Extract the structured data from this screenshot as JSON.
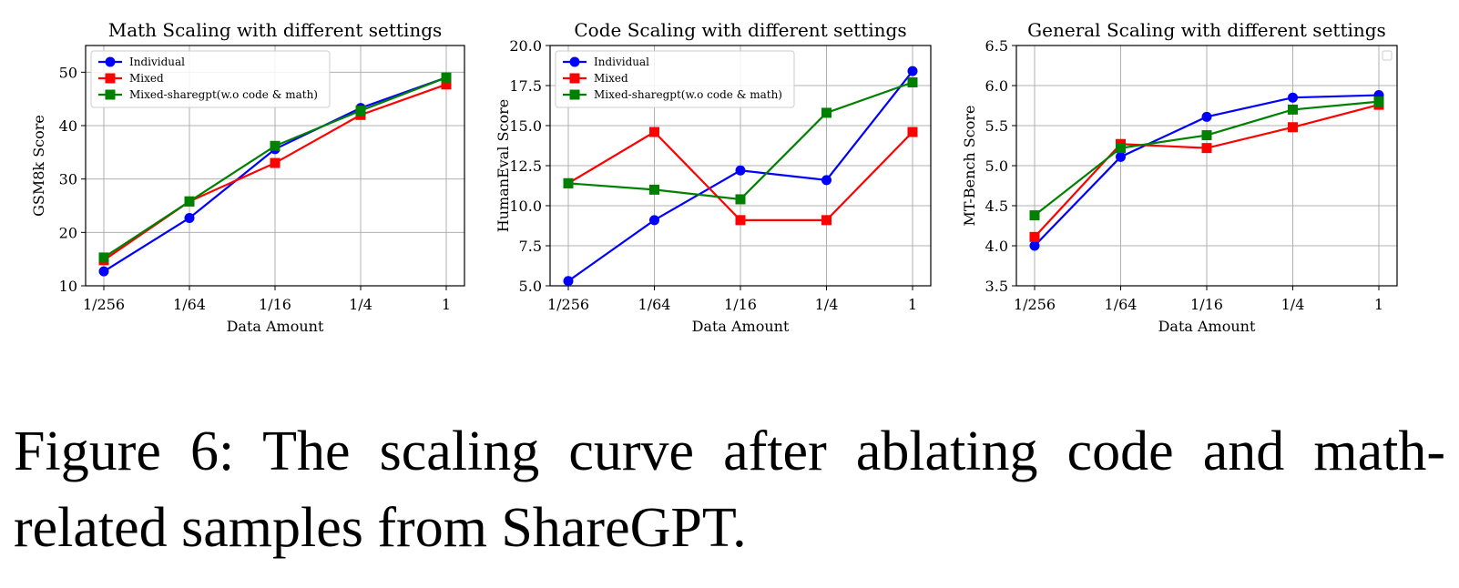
{
  "chart_data": [
    {
      "type": "line",
      "title": "Math Scaling with different settings",
      "xlabel": "Data Amount",
      "ylabel": "GSM8k Score",
      "categories": [
        "1/256",
        "1/64",
        "1/16",
        "1/4",
        "1"
      ],
      "ylim": [
        10,
        55
      ],
      "yticks": [
        "10",
        "20",
        "30",
        "40",
        "50"
      ],
      "grid": true,
      "legend_position": "top-left",
      "series": [
        {
          "name": "Individual",
          "color": "#0000ff",
          "marker": "circle",
          "values": [
            12.7,
            22.7,
            35.6,
            43.3,
            49.0
          ]
        },
        {
          "name": "Mixed",
          "color": "#ff0000",
          "marker": "square",
          "values": [
            14.8,
            25.8,
            33.0,
            42.0,
            47.7
          ]
        },
        {
          "name": "Mixed-sharegpt(w.o code & math)",
          "color": "#008000",
          "marker": "square",
          "values": [
            15.3,
            25.8,
            36.2,
            42.8,
            49.0
          ]
        }
      ]
    },
    {
      "type": "line",
      "title": "Code Scaling with different settings",
      "xlabel": "Data Amount",
      "ylabel": "HumanEval Score",
      "categories": [
        "1/256",
        "1/64",
        "1/16",
        "1/4",
        "1"
      ],
      "ylim": [
        5.0,
        20.0
      ],
      "yticks": [
        "5.0",
        "7.5",
        "10.0",
        "12.5",
        "15.0",
        "17.5",
        "20.0"
      ],
      "grid": true,
      "legend_position": "top-left",
      "series": [
        {
          "name": "Individual",
          "color": "#0000ff",
          "marker": "circle",
          "values": [
            5.3,
            9.1,
            12.2,
            11.6,
            18.4
          ]
        },
        {
          "name": "Mixed",
          "color": "#ff0000",
          "marker": "square",
          "values": [
            11.4,
            14.6,
            9.1,
            9.1,
            14.6
          ]
        },
        {
          "name": "Mixed-sharegpt(w.o code & math)",
          "color": "#008000",
          "marker": "square",
          "values": [
            11.4,
            11.0,
            10.4,
            15.8,
            17.7
          ]
        }
      ]
    },
    {
      "type": "line",
      "title": "General Scaling with different settings",
      "xlabel": "Data Amount",
      "ylabel": "MT-Bench Score",
      "categories": [
        "1/256",
        "1/64",
        "1/16",
        "1/4",
        "1"
      ],
      "ylim": [
        3.5,
        6.5
      ],
      "yticks": [
        "3.5",
        "4.0",
        "4.5",
        "5.0",
        "5.5",
        "6.0",
        "6.5"
      ],
      "grid": true,
      "legend_position": "top-right",
      "series": [
        {
          "color": "#0000ff",
          "marker": "circle",
          "values": [
            4.0,
            5.11,
            5.61,
            5.85,
            5.88
          ]
        },
        {
          "color": "#ff0000",
          "marker": "square",
          "values": [
            4.11,
            5.27,
            5.22,
            5.48,
            5.76
          ]
        },
        {
          "color": "#008000",
          "marker": "square",
          "values": [
            4.38,
            5.22,
            5.38,
            5.7,
            5.8
          ]
        }
      ]
    }
  ],
  "caption": "Figure 6: The scaling curve after ablating code and math-related samples from ShareGPT."
}
